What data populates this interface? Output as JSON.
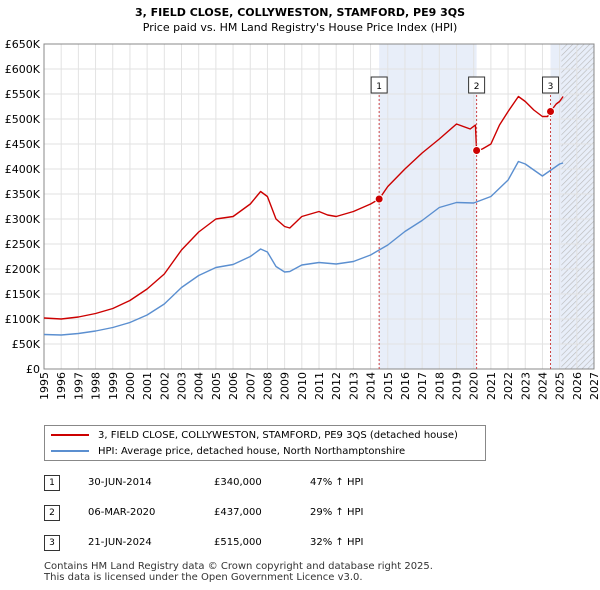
{
  "chart_data": {
    "type": "line",
    "title": "3, FIELD CLOSE, COLLYWESTON, STAMFORD, PE9 3QS",
    "subtitle": "Price paid vs. HM Land Registry's House Price Index (HPI)",
    "xlim": [
      1995,
      2027
    ],
    "ylim": [
      0,
      650000
    ],
    "x_ticks": [
      "1995",
      "1996",
      "1997",
      "1998",
      "1999",
      "2000",
      "2001",
      "2002",
      "2003",
      "2004",
      "2005",
      "2006",
      "2007",
      "2008",
      "2009",
      "2010",
      "2011",
      "2012",
      "2013",
      "2014",
      "2015",
      "2016",
      "2017",
      "2018",
      "2019",
      "2020",
      "2021",
      "2022",
      "2023",
      "2024",
      "2025",
      "2026",
      "2027"
    ],
    "y_ticks": [
      {
        "value": 0,
        "label": "£0"
      },
      {
        "value": 50000,
        "label": "£50K"
      },
      {
        "value": 100000,
        "label": "£100K"
      },
      {
        "value": 150000,
        "label": "£150K"
      },
      {
        "value": 200000,
        "label": "£200K"
      },
      {
        "value": 250000,
        "label": "£250K"
      },
      {
        "value": 300000,
        "label": "£300K"
      },
      {
        "value": 350000,
        "label": "£350K"
      },
      {
        "value": 400000,
        "label": "£400K"
      },
      {
        "value": 450000,
        "label": "£450K"
      },
      {
        "value": 500000,
        "label": "£500K"
      },
      {
        "value": 550000,
        "label": "£550K"
      },
      {
        "value": 600000,
        "label": "£600K"
      },
      {
        "value": 650000,
        "label": "£650K"
      }
    ],
    "grid": true,
    "shaded_ranges": [
      [
        2014.5,
        2020.17
      ],
      [
        2024.47,
        2027
      ]
    ],
    "future_hatch_from": 2025.1,
    "series": [
      {
        "name": "3, FIELD CLOSE, COLLYWESTON, STAMFORD, PE9 3QS (detached house)",
        "color": "#cc0000",
        "x": [
          1995,
          1996,
          1997,
          1998,
          1999,
          2000,
          2001,
          2002,
          2003,
          2004,
          2005,
          2006,
          2007,
          2007.6,
          2008,
          2008.5,
          2009,
          2009.3,
          2010,
          2011,
          2011.5,
          2012,
          2013,
          2014,
          2014.5,
          2015,
          2016,
          2017,
          2018,
          2019,
          2019.8,
          2020.1,
          2020.17,
          2020.5,
          2021,
          2021.5,
          2022,
          2022.6,
          2023,
          2023.5,
          2024,
          2024.3,
          2024.47,
          2024.8,
          2025,
          2025.2
        ],
        "values": [
          102000,
          100000,
          104000,
          111000,
          121000,
          137000,
          160000,
          190000,
          238000,
          274000,
          300000,
          305000,
          330000,
          355000,
          345000,
          300000,
          285000,
          282000,
          305000,
          315000,
          308000,
          305000,
          315000,
          330000,
          340000,
          365000,
          400000,
          432000,
          460000,
          490000,
          480000,
          488000,
          437000,
          440000,
          450000,
          488000,
          515000,
          545000,
          535000,
          518000,
          505000,
          505000,
          515000,
          530000,
          535000,
          545000
        ]
      },
      {
        "name": "HPI: Average price, detached house, North Northamptonshire",
        "color": "#5b8fd0",
        "x": [
          1995,
          1996,
          1997,
          1998,
          1999,
          2000,
          2001,
          2002,
          2003,
          2004,
          2005,
          2006,
          2007,
          2007.6,
          2008,
          2008.5,
          2009,
          2009.3,
          2010,
          2011,
          2012,
          2013,
          2014,
          2015,
          2016,
          2017,
          2018,
          2019,
          2020,
          2021,
          2022,
          2022.6,
          2023,
          2023.5,
          2024,
          2024.5,
          2025,
          2025.2
        ],
        "values": [
          69000,
          68000,
          71000,
          76000,
          83000,
          93000,
          108000,
          130000,
          163000,
          187000,
          203000,
          209000,
          225000,
          240000,
          234000,
          205000,
          194000,
          195000,
          208000,
          213000,
          210000,
          215000,
          228000,
          248000,
          275000,
          297000,
          323000,
          333000,
          332000,
          345000,
          378000,
          415000,
          410000,
          398000,
          386000,
          398000,
          410000,
          412000
        ]
      }
    ],
    "markers": [
      {
        "label": "1",
        "x": 2014.5,
        "value": 340000
      },
      {
        "label": "2",
        "x": 2020.17,
        "value": 437000
      },
      {
        "label": "3",
        "x": 2024.47,
        "value": 515000
      }
    ]
  },
  "legend": {
    "items": [
      {
        "label": "3, FIELD CLOSE, COLLYWESTON, STAMFORD, PE9 3QS (detached house)",
        "color": "#cc0000"
      },
      {
        "label": "HPI: Average price, detached house, North Northamptonshire",
        "color": "#5b8fd0"
      }
    ]
  },
  "transactions": [
    {
      "num": "1",
      "date": "30-JUN-2014",
      "price": "£340,000",
      "hpi": "47% ↑ HPI"
    },
    {
      "num": "2",
      "date": "06-MAR-2020",
      "price": "£437,000",
      "hpi": "29% ↑ HPI"
    },
    {
      "num": "3",
      "date": "21-JUN-2024",
      "price": "£515,000",
      "hpi": "32% ↑ HPI"
    }
  ],
  "footer": {
    "line1": "Contains HM Land Registry data © Crown copyright and database right 2025.",
    "line2": "This data is licensed under the Open Government Licence v3.0."
  }
}
